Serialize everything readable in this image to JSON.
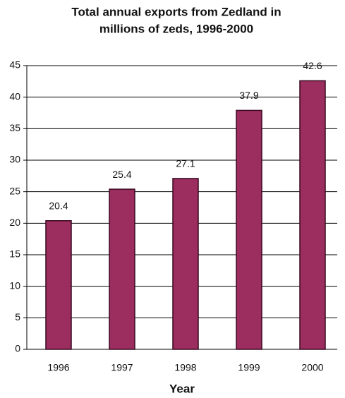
{
  "chart_data": {
    "type": "bar",
    "title": [
      "Total annual exports from Zedland in",
      "millions of zeds, 1996-2000"
    ],
    "x_label": "Year",
    "categories": [
      "1996",
      "1997",
      "1998",
      "1999",
      "2000"
    ],
    "values": [
      20.4,
      25.4,
      27.1,
      37.9,
      42.6
    ],
    "color": "#9b2d5f",
    "ylim": [
      0,
      45
    ],
    "yticks": [
      0,
      5,
      10,
      15,
      20,
      25,
      30,
      35,
      40,
      45
    ],
    "grid": true
  }
}
